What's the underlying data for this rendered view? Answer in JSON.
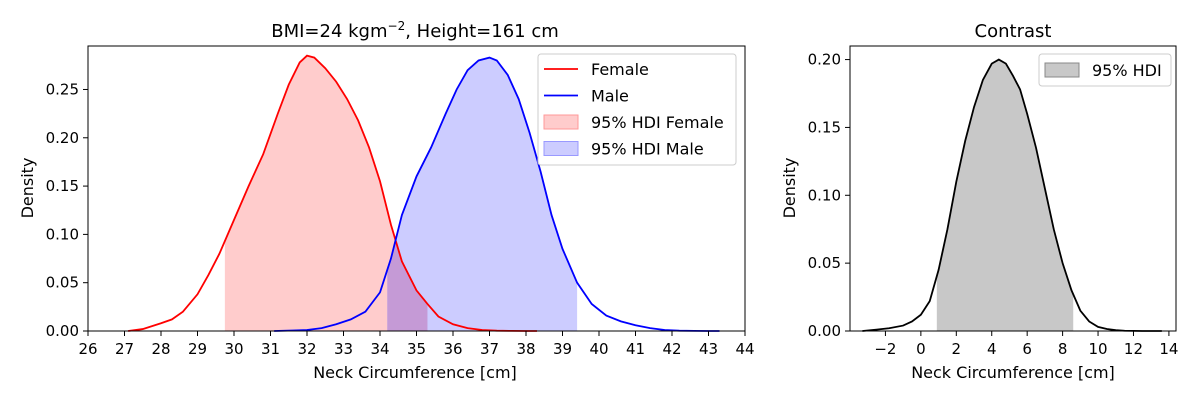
{
  "chart_data": [
    {
      "type": "area",
      "title": "BMI=24 kgm",
      "title_superscript": "−2",
      "title_suffix": ", Height=161 cm",
      "xlabel": "Neck Circumference [cm]",
      "ylabel": "Density",
      "xlim": [
        26,
        44
      ],
      "ylim": [
        0,
        0.295
      ],
      "x_ticks": [
        "26",
        "27",
        "28",
        "29",
        "30",
        "31",
        "32",
        "33",
        "34",
        "35",
        "36",
        "37",
        "38",
        "39",
        "40",
        "41",
        "42",
        "43",
        "44"
      ],
      "x_tick_values": [
        26,
        27,
        28,
        29,
        30,
        31,
        32,
        33,
        34,
        35,
        36,
        37,
        38,
        39,
        40,
        41,
        42,
        43,
        44
      ],
      "y_ticks": [
        "0.00",
        "0.05",
        "0.10",
        "0.15",
        "0.20",
        "0.25"
      ],
      "y_tick_values": [
        0,
        0.05,
        0.1,
        0.15,
        0.2,
        0.25
      ],
      "legend_position": "top-right",
      "legend": [
        "Female",
        "Male",
        "95% HDI Female",
        "95% HDI Male"
      ],
      "colors": {
        "female": "#ff0000",
        "male": "#0000ff",
        "female_fill": "#ffcccc",
        "male_fill": "#ccccff",
        "overlap_fill": "#c59ad6"
      },
      "series": [
        {
          "name": "Female",
          "hdi": [
            29.75,
            35.3
          ],
          "x": [
            27.1,
            27.5,
            28.0,
            28.3,
            28.6,
            29.0,
            29.3,
            29.6,
            30.0,
            30.4,
            30.8,
            31.2,
            31.5,
            31.8,
            32.0,
            32.2,
            32.5,
            32.8,
            33.1,
            33.4,
            33.7,
            34.0,
            34.3,
            34.6,
            35.0,
            35.3,
            35.6,
            36.0,
            36.4,
            36.8,
            37.2,
            37.6,
            38.0,
            38.3
          ],
          "values": [
            0.0,
            0.002,
            0.008,
            0.012,
            0.02,
            0.038,
            0.058,
            0.08,
            0.115,
            0.15,
            0.183,
            0.225,
            0.255,
            0.278,
            0.285,
            0.283,
            0.272,
            0.258,
            0.24,
            0.218,
            0.19,
            0.155,
            0.11,
            0.072,
            0.042,
            0.028,
            0.015,
            0.007,
            0.003,
            0.001,
            0.0003,
            0.0001,
            0.0,
            0.0
          ]
        },
        {
          "name": "Male",
          "hdi": [
            34.2,
            39.4
          ],
          "x": [
            31.1,
            31.6,
            32.0,
            32.4,
            32.8,
            33.2,
            33.6,
            34.0,
            34.3,
            34.6,
            35.0,
            35.4,
            35.8,
            36.1,
            36.4,
            36.7,
            37.0,
            37.2,
            37.5,
            37.8,
            38.1,
            38.4,
            38.7,
            39.0,
            39.4,
            39.8,
            40.2,
            40.6,
            41.0,
            41.4,
            41.8,
            42.2,
            42.6,
            43.0,
            43.3
          ],
          "values": [
            0.0,
            0.0005,
            0.001,
            0.003,
            0.007,
            0.012,
            0.02,
            0.04,
            0.075,
            0.12,
            0.16,
            0.19,
            0.225,
            0.25,
            0.27,
            0.28,
            0.283,
            0.28,
            0.265,
            0.24,
            0.205,
            0.165,
            0.12,
            0.085,
            0.05,
            0.028,
            0.016,
            0.01,
            0.006,
            0.003,
            0.001,
            0.0003,
            0.0001,
            0.0,
            0.0
          ]
        }
      ]
    },
    {
      "type": "area",
      "title": "Contrast",
      "xlabel": "Neck Circumference [cm]",
      "ylabel": "Density",
      "xlim": [
        -4,
        14.4
      ],
      "ylim": [
        0,
        0.21
      ],
      "x_ticks": [
        "−2",
        "0",
        "2",
        "4",
        "6",
        "8",
        "10",
        "12",
        "14"
      ],
      "x_tick_values": [
        -2,
        0,
        2,
        4,
        6,
        8,
        10,
        12,
        14
      ],
      "y_ticks": [
        "0.00",
        "0.05",
        "0.10",
        "0.15",
        "0.20"
      ],
      "y_tick_values": [
        0,
        0.05,
        0.1,
        0.15,
        0.2
      ],
      "legend_position": "top-right",
      "legend": [
        "95% HDI"
      ],
      "colors": {
        "line": "#000000",
        "fill": "#c8c8c8"
      },
      "series": [
        {
          "name": "95% HDI",
          "hdi": [
            0.9,
            8.6
          ],
          "x": [
            -3.3,
            -2.5,
            -1.8,
            -1.0,
            -0.5,
            0.0,
            0.5,
            1.0,
            1.5,
            2.0,
            2.5,
            3.0,
            3.5,
            4.0,
            4.4,
            4.8,
            5.2,
            5.6,
            6.0,
            6.5,
            7.0,
            7.5,
            8.0,
            8.5,
            9.0,
            9.5,
            10.0,
            10.5,
            11.0,
            11.5,
            12.0,
            12.5,
            13.0,
            13.6
          ],
          "values": [
            0.0,
            0.001,
            0.002,
            0.004,
            0.007,
            0.012,
            0.022,
            0.045,
            0.075,
            0.11,
            0.14,
            0.165,
            0.185,
            0.197,
            0.2,
            0.197,
            0.188,
            0.178,
            0.16,
            0.135,
            0.105,
            0.075,
            0.05,
            0.03,
            0.015,
            0.007,
            0.003,
            0.0015,
            0.0006,
            0.0002,
            0.0001,
            0.0,
            0.0,
            0.0
          ]
        }
      ]
    }
  ]
}
